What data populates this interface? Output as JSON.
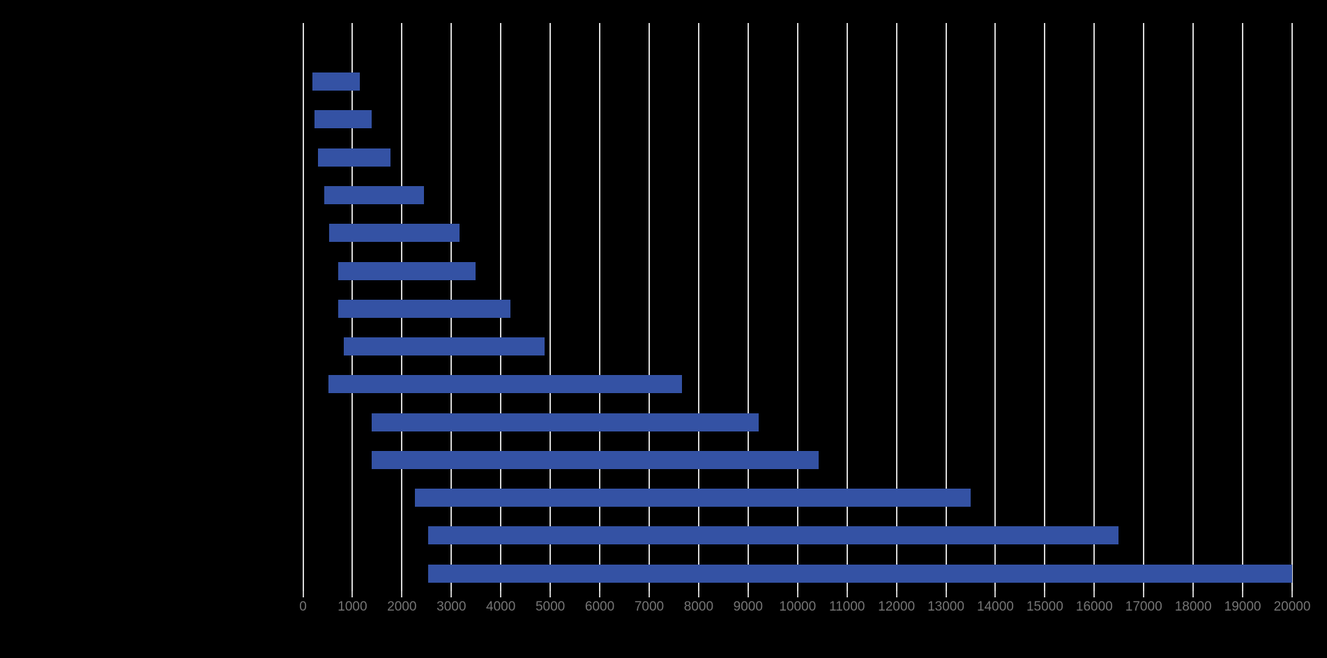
{
  "chart_data": {
    "type": "bar",
    "variant": "floating-range-bars",
    "orientation": "horizontal",
    "title": "",
    "legend": false,
    "grid": true,
    "background_color": "#000000",
    "bar_color": "#3452A4",
    "gridline_color": "#D9D9D9",
    "tick_mark_color": "#C9C9C9",
    "tick_label_color": "#757575",
    "x_axis": {
      "min": 0,
      "max": 20000,
      "tick_step": 1000,
      "tick_labels": [
        "0",
        "1000",
        "2000",
        "3000",
        "4000",
        "5000",
        "6000",
        "7000",
        "8000",
        "9000",
        "10000",
        "11000",
        "12000",
        "13000",
        "14000",
        "15000",
        "16000",
        "17000",
        "18000",
        "19000",
        "20000"
      ]
    },
    "y_axis": {
      "category_labels_visible": false,
      "bar_count": 14
    },
    "bars": [
      {
        "start": 190,
        "end": 1150
      },
      {
        "start": 235,
        "end": 1390
      },
      {
        "start": 300,
        "end": 1770
      },
      {
        "start": 425,
        "end": 2440
      },
      {
        "start": 525,
        "end": 3160
      },
      {
        "start": 715,
        "end": 3490
      },
      {
        "start": 715,
        "end": 4200
      },
      {
        "start": 820,
        "end": 4885
      },
      {
        "start": 515,
        "end": 7660
      },
      {
        "start": 1390,
        "end": 9220
      },
      {
        "start": 1390,
        "end": 10430
      },
      {
        "start": 2260,
        "end": 13500
      },
      {
        "start": 2525,
        "end": 16490
      },
      {
        "start": 2525,
        "end": 20000
      }
    ]
  }
}
